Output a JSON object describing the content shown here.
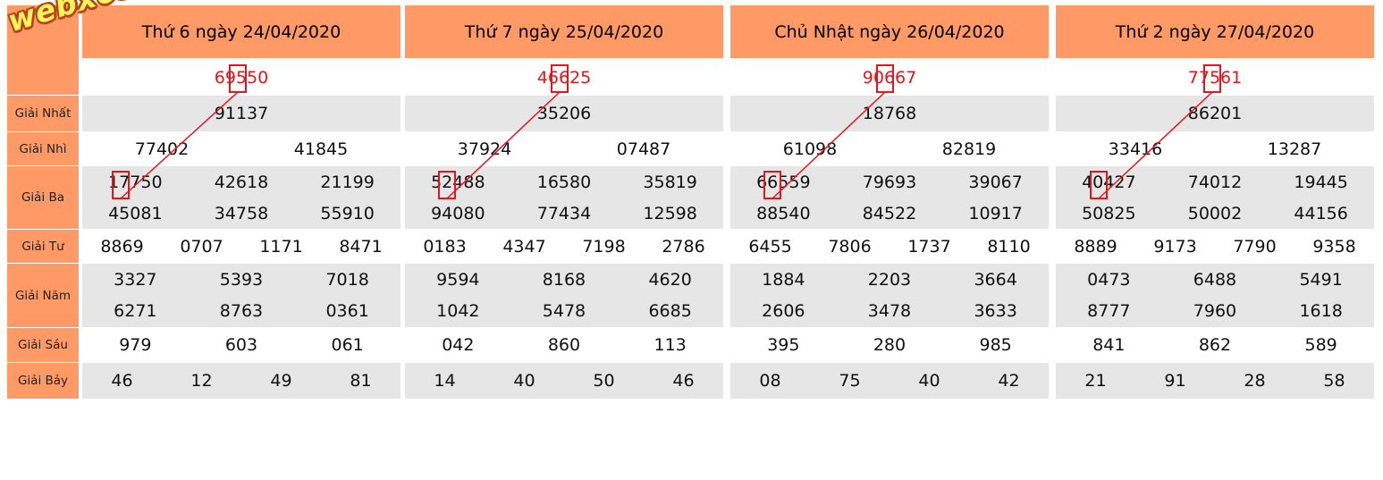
{
  "logo": "webxoso.net",
  "labels": [
    "Giải Nhất",
    "Giải Nhì",
    "Giải Ba",
    "Giải Tư",
    "Giải Năm",
    "Giải Sáu",
    "Giải Bảy"
  ],
  "days": [
    {
      "title": "Thứ 6 ngày 24/04/2020",
      "special": "69550",
      "g1": [
        "91137"
      ],
      "g2": [
        "77402",
        "41845"
      ],
      "g3": [
        [
          "17750",
          "42618",
          "21199"
        ],
        [
          "45081",
          "34758",
          "55910"
        ]
      ],
      "g4": [
        "8869",
        "0707",
        "1171",
        "8471"
      ],
      "g5": [
        [
          "3327",
          "5393",
          "7018"
        ],
        [
          "6271",
          "8763",
          "0361"
        ]
      ],
      "g6": [
        "979",
        "603",
        "061"
      ],
      "g7": [
        "46",
        "12",
        "49",
        "81"
      ]
    },
    {
      "title": "Thứ 7 ngày 25/04/2020",
      "special": "46625",
      "g1": [
        "35206"
      ],
      "g2": [
        "37924",
        "07487"
      ],
      "g3": [
        [
          "52488",
          "16580",
          "35819"
        ],
        [
          "94080",
          "77434",
          "12598"
        ]
      ],
      "g4": [
        "0183",
        "4347",
        "7198",
        "2786"
      ],
      "g5": [
        [
          "9594",
          "8168",
          "4620"
        ],
        [
          "1042",
          "5478",
          "6685"
        ]
      ],
      "g6": [
        "042",
        "860",
        "113"
      ],
      "g7": [
        "14",
        "40",
        "50",
        "46"
      ]
    },
    {
      "title": "Chủ Nhật ngày 26/04/2020",
      "special": "90667",
      "g1": [
        "18768"
      ],
      "g2": [
        "61098",
        "82819"
      ],
      "g3": [
        [
          "66559",
          "79693",
          "39067"
        ],
        [
          "88540",
          "84522",
          "10917"
        ]
      ],
      "g4": [
        "6455",
        "7806",
        "1737",
        "8110"
      ],
      "g5": [
        [
          "1884",
          "2203",
          "3664"
        ],
        [
          "2606",
          "3478",
          "3633"
        ]
      ],
      "g6": [
        "395",
        "280",
        "985"
      ],
      "g7": [
        "08",
        "75",
        "40",
        "42"
      ]
    },
    {
      "title": "Thứ 2 ngày 27/04/2020",
      "special": "77561",
      "g1": [
        "86201"
      ],
      "g2": [
        "33416",
        "13287"
      ],
      "g3": [
        [
          "40427",
          "74012",
          "19445"
        ],
        [
          "50825",
          "50002",
          "44156"
        ]
      ],
      "g4": [
        "8889",
        "9173",
        "7790",
        "9358"
      ],
      "g5": [
        [
          "0473",
          "6488",
          "5491"
        ],
        [
          "8777",
          "7960",
          "1618"
        ]
      ],
      "g6": [
        "841",
        "862",
        "589"
      ],
      "g7": [
        "21",
        "91",
        "28",
        "58"
      ]
    }
  ],
  "highlight_color": "#e8141c"
}
